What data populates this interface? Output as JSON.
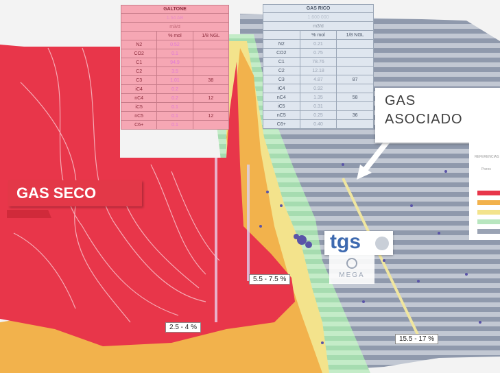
{
  "map": {
    "zones": [
      "gas seco",
      "gas asociado"
    ],
    "colors": {
      "gas_seco": "#e8364a",
      "transition_orange": "#f2b24c",
      "transition_yellow": "#f3e38c",
      "green": "#b8e6bf",
      "gas_asociado": "#9aa3b4"
    }
  },
  "labels": {
    "gas_seco": "GAS SECO",
    "gas_asociado_line1": "GAS",
    "gas_asociado_line2": "ASOCIADO",
    "range_1": "2.5 - 4 %",
    "range_2": "5.5 - 7.5 %",
    "range_3": "15.5 - 17 %"
  },
  "logos": {
    "tgs": "tgs",
    "mega": "MEGA"
  },
  "table_left": {
    "title": "GALTONE",
    "subtitle1": "1.54 AB",
    "subtitle2": "m3/d",
    "col_pct": "% mol",
    "col_ngl": "1/8 NGL",
    "rows": [
      {
        "comp": "N2",
        "val": "0.52",
        "ngl": ""
      },
      {
        "comp": "CO2",
        "val": "0.1",
        "ngl": ""
      },
      {
        "comp": "C1",
        "val": "94.9",
        "ngl": ""
      },
      {
        "comp": "C2",
        "val": "3.5",
        "ngl": ""
      },
      {
        "comp": "C3",
        "val": "1.01",
        "ngl": "38"
      },
      {
        "comp": "iC4",
        "val": "0.2",
        "ngl": ""
      },
      {
        "comp": "nC4",
        "val": "0.2",
        "ngl": "12"
      },
      {
        "comp": "iC5",
        "val": "0.1",
        "ngl": ""
      },
      {
        "comp": "nC5",
        "val": "0.1",
        "ngl": "12"
      },
      {
        "comp": "C6+",
        "val": "0.1",
        "ngl": ""
      }
    ]
  },
  "table_right": {
    "title": "GAS RICO",
    "subtitle1": "1.600 000",
    "subtitle2": "m3/d",
    "col_pct": "% mol",
    "col_ngl": "1/8 NGL",
    "rows": [
      {
        "comp": "N2",
        "val": "0.21",
        "ngl": ""
      },
      {
        "comp": "CO2",
        "val": "0.75",
        "ngl": ""
      },
      {
        "comp": "C1",
        "val": "78.76",
        "ngl": ""
      },
      {
        "comp": "C2",
        "val": "12.18",
        "ngl": ""
      },
      {
        "comp": "C3",
        "val": "4.87",
        "ngl": "87"
      },
      {
        "comp": "iC4",
        "val": "0.92",
        "ngl": ""
      },
      {
        "comp": "nC4",
        "val": "1.35",
        "ngl": "58"
      },
      {
        "comp": "iC5",
        "val": "0.31",
        "ngl": ""
      },
      {
        "comp": "nC5",
        "val": "0.25",
        "ngl": "36"
      },
      {
        "comp": "C6+",
        "val": "0.40",
        "ngl": ""
      }
    ]
  },
  "legend": {
    "title": "REFERENCIAS",
    "item": "Pozos",
    "swatch_colors": [
      "#e8364a",
      "#f2b24c",
      "#f3e38c",
      "#b8e6bf",
      "#9aa3b4"
    ]
  }
}
